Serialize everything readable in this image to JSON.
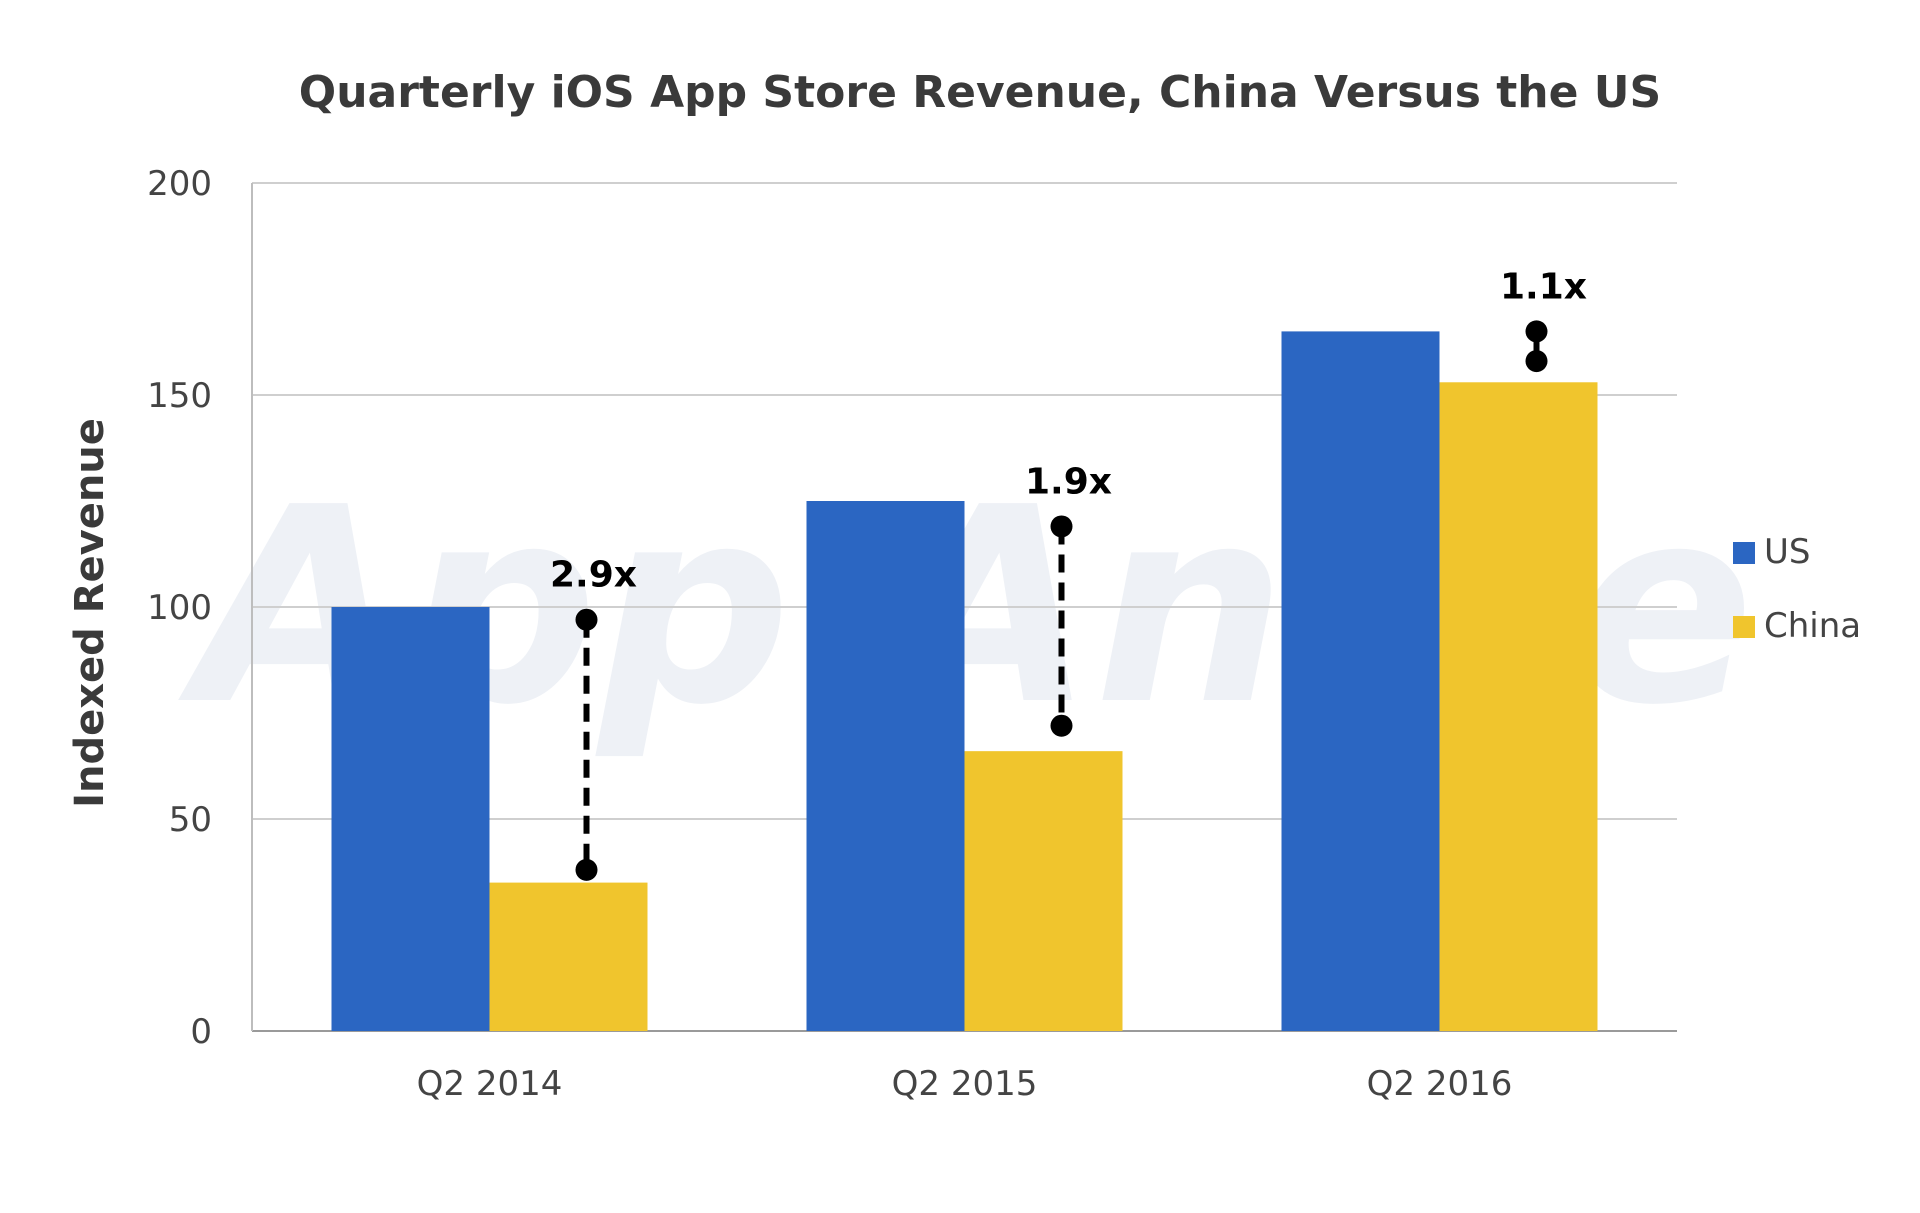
{
  "chart_data": {
    "type": "bar",
    "title": "Quarterly iOS App Store Revenue, China Versus the US",
    "xlabel": "",
    "ylabel": "Indexed Revenue",
    "categories": [
      "Q2 2014",
      "Q2 2015",
      "Q2 2016"
    ],
    "series": [
      {
        "name": "US",
        "values": [
          100,
          125,
          165
        ],
        "color": "#2b66c2"
      },
      {
        "name": "China",
        "values": [
          35,
          66,
          153
        ],
        "color": "#f0c52d"
      }
    ],
    "ylim": [
      0,
      200
    ],
    "yticks": [
      0,
      50,
      100,
      150,
      200
    ],
    "grid": true,
    "legend_position": "right",
    "annotations": [
      {
        "category": "Q2 2014",
        "label": "2.9x",
        "from": 97,
        "to": 38
      },
      {
        "category": "Q2 2015",
        "label": "1.9x",
        "from": 119,
        "to": 72
      },
      {
        "category": "Q2 2016",
        "label": "1.1x",
        "from": 165,
        "to": 158
      }
    ],
    "watermark": "App Annie"
  }
}
